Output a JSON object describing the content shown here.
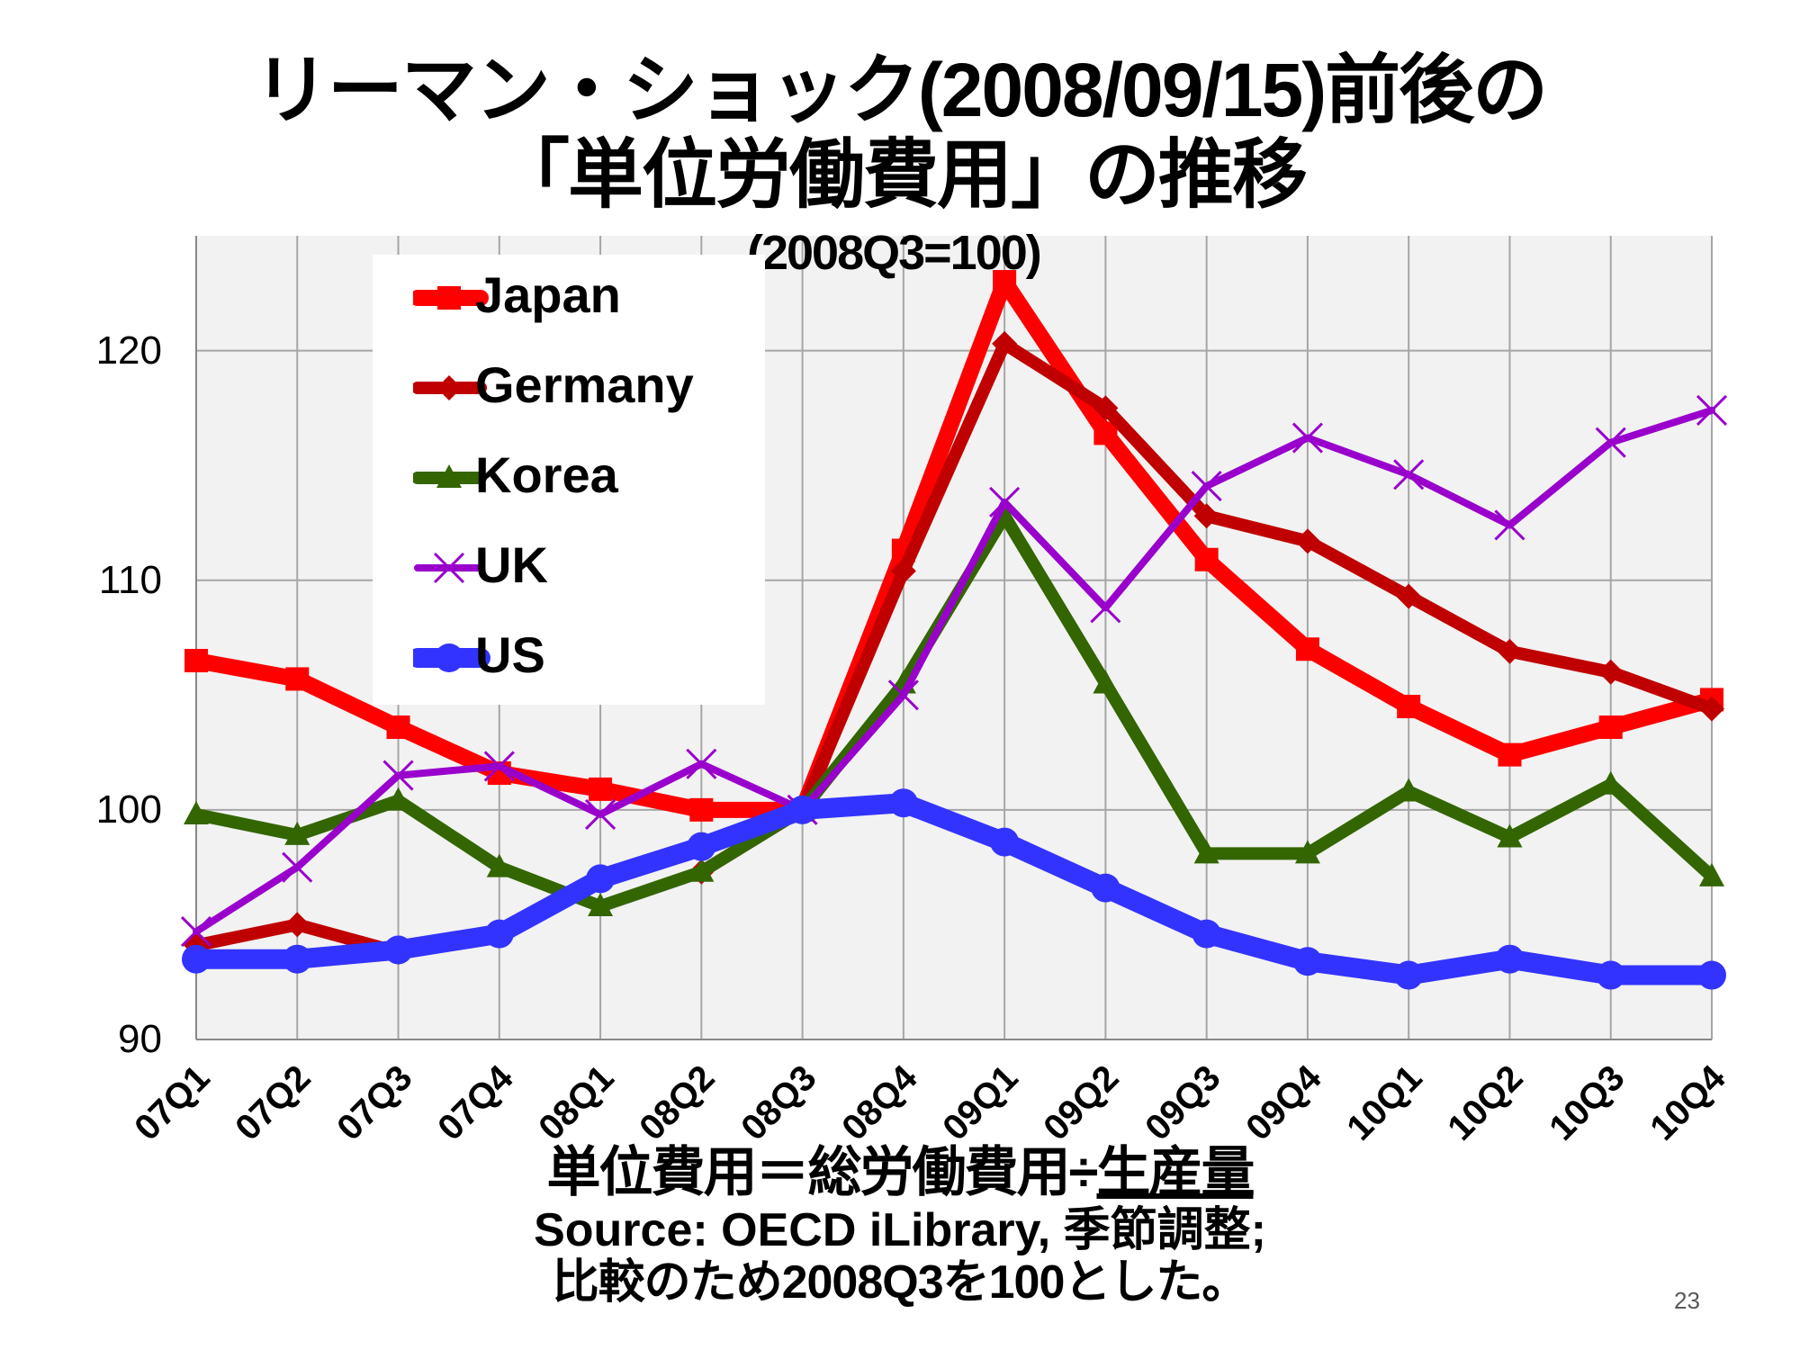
{
  "title_line1": "リーマン・ショック(2008/09/15)前後の",
  "title_line2": "「単位労働費用」の推移",
  "subtitle": "(2008Q3=100)",
  "formula_main": "単位費用＝総労働費用÷",
  "formula_underlined": "生産量",
  "source": "Source: OECD iLibrary, 季節調整;",
  "note": "比較のため2008Q3を100とした。",
  "page_number": "23",
  "chart_data": {
    "type": "line",
    "title": "リーマン・ショック(2008/09/15)前後の「単位労働費用」の推移",
    "subtitle": "(2008Q3=100)",
    "categories": [
      "07Q1",
      "07Q2",
      "07Q3",
      "07Q4",
      "08Q1",
      "08Q2",
      "08Q3",
      "08Q4",
      "09Q1",
      "09Q2",
      "09Q3",
      "09Q4",
      "10Q1",
      "10Q2",
      "10Q3",
      "10Q4"
    ],
    "y_ticks": [
      "90",
      "100",
      "110",
      "120"
    ],
    "ylim": [
      90,
      125
    ],
    "grid": true,
    "legend_position": "top-left",
    "series": [
      {
        "name": "Japan",
        "color": "#ff0000",
        "marker": "square",
        "values": [
          106.5,
          105.7,
          103.6,
          101.6,
          100.9,
          100.0,
          100.0,
          111.3,
          123.0,
          116.4,
          110.9,
          107.0,
          104.5,
          102.4,
          103.6,
          104.8
        ]
      },
      {
        "name": "Germany",
        "color": "#c00000",
        "marker": "diamond",
        "values": [
          94.1,
          95.0,
          93.8,
          null,
          null,
          97.3,
          100.0,
          110.4,
          120.3,
          117.5,
          112.8,
          111.7,
          109.3,
          106.9,
          106.0,
          104.4
        ]
      },
      {
        "name": "Korea",
        "color": "#336600",
        "marker": "triangle",
        "values": [
          99.8,
          98.9,
          100.4,
          97.5,
          95.8,
          97.3,
          100.0,
          105.5,
          112.8,
          105.5,
          98.1,
          98.1,
          100.8,
          98.8,
          101.1,
          97.1
        ]
      },
      {
        "name": "UK",
        "color": "#9900cc",
        "marker": "x",
        "values": [
          94.7,
          97.5,
          101.5,
          101.9,
          99.8,
          102.0,
          100.0,
          105.0,
          113.4,
          108.8,
          114.1,
          116.2,
          114.6,
          112.4,
          116.0,
          117.4
        ]
      },
      {
        "name": "US",
        "color": "#3333ff",
        "marker": "circle",
        "values": [
          93.5,
          93.5,
          93.9,
          94.6,
          97.0,
          98.4,
          100.0,
          100.3,
          98.6,
          96.6,
          94.6,
          93.4,
          92.8,
          93.5,
          92.8,
          92.8
        ]
      }
    ]
  }
}
